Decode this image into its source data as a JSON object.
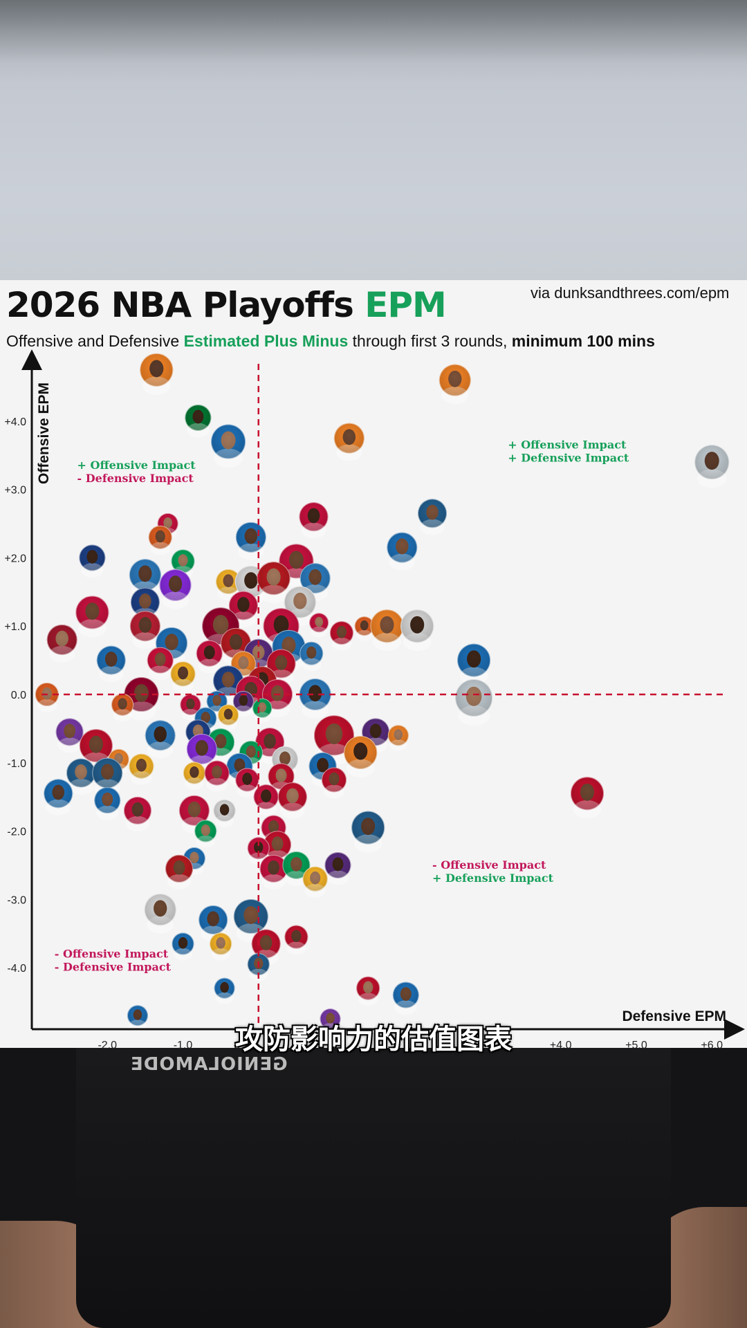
{
  "chart_data": {
    "type": "scatter",
    "title_main": "2026 NBA Playoffs",
    "title_accent": "EPM",
    "subtitle_parts": [
      {
        "text": "Offensive and Defensive ",
        "style": "normal"
      },
      {
        "text": "Estimated Plus Minus",
        "style": "accent"
      },
      {
        "text": " through first 3 rounds, ",
        "style": "normal"
      },
      {
        "text": "minimum 100 mins",
        "style": "strong"
      }
    ],
    "source": "via dunksandthrees.com/epm",
    "xlabel": "Defensive EPM",
    "ylabel": "Offensive EPM",
    "xlim": [
      -3.0,
      6.3
    ],
    "ylim": [
      -4.9,
      4.9
    ],
    "x_ticks": [
      "-2.0",
      "-1.0",
      "",
      "",
      "",
      "",
      "+4.0",
      "+5.0",
      "+6.0"
    ],
    "x_tick_values": [
      -2,
      -1,
      0,
      1,
      2,
      3,
      4,
      5,
      6
    ],
    "y_ticks": [
      "+4.0",
      "+3.0",
      "+2.0",
      "+1.0",
      "0.0",
      "-1.0",
      "-2.0",
      "-3.0",
      "-4.0"
    ],
    "y_tick_values": [
      4,
      3,
      2,
      1,
      0,
      -1,
      -2,
      -3,
      -4
    ],
    "reference_lines": {
      "x": 0,
      "y": 0,
      "color": "#c8102e",
      "style": "dashed"
    },
    "quadrant_labels": [
      {
        "lines": [
          {
            "text": "+ Offensive Impact",
            "sign": "plus"
          },
          {
            "text": "- Defensive Impact",
            "sign": "minus"
          }
        ],
        "x": -2.4,
        "y": 3.3
      },
      {
        "lines": [
          {
            "text": "+ Offensive Impact",
            "sign": "plus"
          },
          {
            "text": "+ Defensive Impact",
            "sign": "plus"
          }
        ],
        "x": 3.3,
        "y": 3.6
      },
      {
        "lines": [
          {
            "text": "- Offensive Impact",
            "sign": "minus"
          },
          {
            "text": "+ Defensive Impact",
            "sign": "plus"
          }
        ],
        "x": 2.3,
        "y": -2.55
      },
      {
        "lines": [
          {
            "text": "- Offensive Impact",
            "sign": "minus"
          },
          {
            "text": "- Defensive Impact",
            "sign": "minus"
          }
        ],
        "x": -2.7,
        "y": -3.85
      }
    ],
    "points": [
      {
        "x": -1.35,
        "y": 4.75,
        "color": "#f58426",
        "r": 24
      },
      {
        "x": 2.6,
        "y": 4.6,
        "color": "#f58426",
        "r": 23
      },
      {
        "x": -0.8,
        "y": 4.05,
        "color": "#007a33",
        "r": 19
      },
      {
        "x": -0.4,
        "y": 3.7,
        "color": "#1d72bb",
        "r": 25
      },
      {
        "x": 1.2,
        "y": 3.75,
        "color": "#f58426",
        "r": 22
      },
      {
        "x": 6.0,
        "y": 3.4,
        "color": "#c4ced4",
        "r": 25
      },
      {
        "x": 2.3,
        "y": 2.65,
        "color": "#236192",
        "r": 21
      },
      {
        "x": 0.73,
        "y": 2.6,
        "color": "#ce1141",
        "r": 21
      },
      {
        "x": -1.2,
        "y": 2.5,
        "color": "#ce1141",
        "r": 15
      },
      {
        "x": -1.3,
        "y": 2.3,
        "color": "#e56020",
        "r": 17
      },
      {
        "x": -0.1,
        "y": 2.3,
        "color": "#1d72bb",
        "r": 22
      },
      {
        "x": 1.9,
        "y": 2.15,
        "color": "#1d72bb",
        "r": 22
      },
      {
        "x": -2.2,
        "y": 2.0,
        "color": "#1d428a",
        "r": 19
      },
      {
        "x": -1.0,
        "y": 1.95,
        "color": "#00a65a",
        "r": 17
      },
      {
        "x": 0.5,
        "y": 1.95,
        "color": "#ce1141",
        "r": 25
      },
      {
        "x": -1.5,
        "y": 1.75,
        "color": "#2c7dc1",
        "r": 23
      },
      {
        "x": -0.4,
        "y": 1.65,
        "color": "#fdb927",
        "r": 18
      },
      {
        "x": -0.1,
        "y": 1.65,
        "color": "#e0e0e0",
        "r": 23
      },
      {
        "x": 0.2,
        "y": 1.7,
        "color": "#bd1b21",
        "r": 24
      },
      {
        "x": 0.75,
        "y": 1.7,
        "color": "#2c7dc1",
        "r": 22
      },
      {
        "x": -1.1,
        "y": 1.6,
        "color": "#8a2be2",
        "r": 23
      },
      {
        "x": -1.5,
        "y": 1.35,
        "color": "#1d428a",
        "r": 21
      },
      {
        "x": -0.2,
        "y": 1.3,
        "color": "#ce1141",
        "r": 21
      },
      {
        "x": 0.55,
        "y": 1.35,
        "color": "#dadada",
        "r": 23
      },
      {
        "x": -2.2,
        "y": 1.2,
        "color": "#ce1141",
        "r": 24
      },
      {
        "x": -1.5,
        "y": 1.0,
        "color": "#bf2035",
        "r": 22
      },
      {
        "x": -0.5,
        "y": 1.0,
        "color": "#98002e",
        "r": 27
      },
      {
        "x": 0.3,
        "y": 1.0,
        "color": "#ce1141",
        "r": 26
      },
      {
        "x": 0.8,
        "y": 1.05,
        "color": "#ce1141",
        "r": 14
      },
      {
        "x": 1.1,
        "y": 0.9,
        "color": "#c8102e",
        "r": 17
      },
      {
        "x": 1.4,
        "y": 1.0,
        "color": "#e56020",
        "r": 14
      },
      {
        "x": 1.7,
        "y": 1.0,
        "color": "#f58426",
        "r": 24
      },
      {
        "x": 2.1,
        "y": 1.0,
        "color": "#dadada",
        "r": 24
      },
      {
        "x": -2.6,
        "y": 0.8,
        "color": "#a6192e",
        "r": 22
      },
      {
        "x": -1.15,
        "y": 0.75,
        "color": "#1d72bb",
        "r": 23
      },
      {
        "x": -0.3,
        "y": 0.75,
        "color": "#bd1b21",
        "r": 22
      },
      {
        "x": 0.4,
        "y": 0.7,
        "color": "#1d72bb",
        "r": 24
      },
      {
        "x": -0.65,
        "y": 0.6,
        "color": "#ce1141",
        "r": 19
      },
      {
        "x": 0.0,
        "y": 0.6,
        "color": "#5a2d81",
        "r": 21
      },
      {
        "x": 0.7,
        "y": 0.6,
        "color": "#2c7dc1",
        "r": 17
      },
      {
        "x": -1.95,
        "y": 0.5,
        "color": "#1d72bb",
        "r": 21
      },
      {
        "x": -1.3,
        "y": 0.5,
        "color": "#d1103c",
        "r": 19
      },
      {
        "x": 2.85,
        "y": 0.5,
        "color": "#1d72bb",
        "r": 24
      },
      {
        "x": -0.2,
        "y": 0.45,
        "color": "#f58426",
        "r": 18
      },
      {
        "x": 0.3,
        "y": 0.45,
        "color": "#c8102e",
        "r": 21
      },
      {
        "x": -1.0,
        "y": 0.3,
        "color": "#fdb927",
        "r": 18
      },
      {
        "x": -0.4,
        "y": 0.2,
        "color": "#1d428a",
        "r": 22
      },
      {
        "x": 0.05,
        "y": 0.2,
        "color": "#bd1b21",
        "r": 21
      },
      {
        "x": -2.8,
        "y": 0.0,
        "color": "#e56020",
        "r": 17
      },
      {
        "x": -1.55,
        "y": 0.0,
        "color": "#98002e",
        "r": 25
      },
      {
        "x": -0.1,
        "y": 0.05,
        "color": "#ce1141",
        "r": 22
      },
      {
        "x": 0.25,
        "y": 0.0,
        "color": "#ce1141",
        "r": 22
      },
      {
        "x": 0.75,
        "y": 0.0,
        "color": "#2c7dc1",
        "r": 23
      },
      {
        "x": 2.85,
        "y": -0.05,
        "color": "#c4ced4",
        "r": 27
      },
      {
        "x": -1.8,
        "y": -0.15,
        "color": "#e56020",
        "r": 16
      },
      {
        "x": -0.9,
        "y": -0.15,
        "color": "#ce1141",
        "r": 15
      },
      {
        "x": -0.55,
        "y": -0.1,
        "color": "#1d72bb",
        "r": 15
      },
      {
        "x": -0.2,
        "y": -0.1,
        "color": "#5a2d81",
        "r": 15
      },
      {
        "x": 0.05,
        "y": -0.2,
        "color": "#00a65a",
        "r": 14
      },
      {
        "x": -0.7,
        "y": -0.35,
        "color": "#1d72bb",
        "r": 16
      },
      {
        "x": -0.4,
        "y": -0.3,
        "color": "#fdb927",
        "r": 15
      },
      {
        "x": -2.5,
        "y": -0.55,
        "color": "#7a3aab",
        "r": 20
      },
      {
        "x": -1.3,
        "y": -0.6,
        "color": "#2c7dc1",
        "r": 22
      },
      {
        "x": -0.8,
        "y": -0.55,
        "color": "#1d428a",
        "r": 18
      },
      {
        "x": -0.5,
        "y": -0.7,
        "color": "#00a65a",
        "r": 20
      },
      {
        "x": 0.15,
        "y": -0.7,
        "color": "#ce1141",
        "r": 21
      },
      {
        "x": 1.0,
        "y": -0.6,
        "color": "#c8102e",
        "r": 29
      },
      {
        "x": 1.55,
        "y": -0.55,
        "color": "#5a2d81",
        "r": 20
      },
      {
        "x": 1.85,
        "y": -0.6,
        "color": "#f58426",
        "r": 15
      },
      {
        "x": -2.15,
        "y": -0.75,
        "color": "#c8102e",
        "r": 24
      },
      {
        "x": -0.75,
        "y": -0.8,
        "color": "#8a2be2",
        "r": 22
      },
      {
        "x": -0.1,
        "y": -0.85,
        "color": "#00a65a",
        "r": 17
      },
      {
        "x": 1.35,
        "y": -0.85,
        "color": "#f58426",
        "r": 24
      },
      {
        "x": -1.85,
        "y": -0.95,
        "color": "#f58426",
        "r": 15
      },
      {
        "x": -1.55,
        "y": -1.05,
        "color": "#fdb927",
        "r": 18
      },
      {
        "x": -0.25,
        "y": -1.05,
        "color": "#1d72bb",
        "r": 19
      },
      {
        "x": 0.35,
        "y": -0.95,
        "color": "#dadada",
        "r": 19
      },
      {
        "x": 0.85,
        "y": -1.05,
        "color": "#1d72bb",
        "r": 20
      },
      {
        "x": -2.35,
        "y": -1.15,
        "color": "#236192",
        "r": 21
      },
      {
        "x": -2.0,
        "y": -1.15,
        "color": "#236192",
        "r": 22
      },
      {
        "x": -0.85,
        "y": -1.15,
        "color": "#fdb927",
        "r": 16
      },
      {
        "x": -0.55,
        "y": -1.15,
        "color": "#ce1141",
        "r": 18
      },
      {
        "x": -0.15,
        "y": -1.25,
        "color": "#ce1141",
        "r": 17
      },
      {
        "x": 0.3,
        "y": -1.2,
        "color": "#c8102e",
        "r": 19
      },
      {
        "x": 1.0,
        "y": -1.25,
        "color": "#c8102e",
        "r": 18
      },
      {
        "x": -2.65,
        "y": -1.45,
        "color": "#1d72bb",
        "r": 21
      },
      {
        "x": -2.0,
        "y": -1.55,
        "color": "#1d72bb",
        "r": 19
      },
      {
        "x": 0.1,
        "y": -1.5,
        "color": "#ce1141",
        "r": 18
      },
      {
        "x": 0.45,
        "y": -1.5,
        "color": "#c8102e",
        "r": 21
      },
      {
        "x": 4.35,
        "y": -1.45,
        "color": "#c8102e",
        "r": 24
      },
      {
        "x": -1.6,
        "y": -1.7,
        "color": "#ce1141",
        "r": 20
      },
      {
        "x": -0.85,
        "y": -1.7,
        "color": "#ce1141",
        "r": 22
      },
      {
        "x": -0.45,
        "y": -1.7,
        "color": "#dadada",
        "r": 16
      },
      {
        "x": -0.7,
        "y": -2.0,
        "color": "#00a65a",
        "r": 16
      },
      {
        "x": 0.2,
        "y": -1.95,
        "color": "#ce1141",
        "r": 18
      },
      {
        "x": 1.45,
        "y": -1.95,
        "color": "#236192",
        "r": 24
      },
      {
        "x": 0.25,
        "y": -2.2,
        "color": "#c8102e",
        "r": 20
      },
      {
        "x": 0.0,
        "y": -2.25,
        "color": "#ce1141",
        "r": 16
      },
      {
        "x": -0.85,
        "y": -2.4,
        "color": "#1d72bb",
        "r": 16
      },
      {
        "x": -1.05,
        "y": -2.55,
        "color": "#bd1b21",
        "r": 20
      },
      {
        "x": 0.2,
        "y": -2.55,
        "color": "#ce1141",
        "r": 20
      },
      {
        "x": 0.5,
        "y": -2.5,
        "color": "#00a65a",
        "r": 20
      },
      {
        "x": 1.05,
        "y": -2.5,
        "color": "#5a2d81",
        "r": 19
      },
      {
        "x": 0.75,
        "y": -2.7,
        "color": "#fdb927",
        "r": 18
      },
      {
        "x": -1.3,
        "y": -3.15,
        "color": "#dadada",
        "r": 23
      },
      {
        "x": -0.6,
        "y": -3.3,
        "color": "#1d72bb",
        "r": 21
      },
      {
        "x": -0.1,
        "y": -3.25,
        "color": "#236192",
        "r": 25
      },
      {
        "x": -1.0,
        "y": -3.65,
        "color": "#1d72bb",
        "r": 16
      },
      {
        "x": -0.5,
        "y": -3.65,
        "color": "#fdb927",
        "r": 16
      },
      {
        "x": 0.1,
        "y": -3.65,
        "color": "#c8102e",
        "r": 21
      },
      {
        "x": 0.5,
        "y": -3.55,
        "color": "#c8102e",
        "r": 17
      },
      {
        "x": 0.0,
        "y": -3.95,
        "color": "#236192",
        "r": 16
      },
      {
        "x": -0.45,
        "y": -4.3,
        "color": "#1d72bb",
        "r": 15
      },
      {
        "x": 1.45,
        "y": -4.3,
        "color": "#c8102e",
        "r": 17
      },
      {
        "x": 1.95,
        "y": -4.4,
        "color": "#1d72bb",
        "r": 19
      },
      {
        "x": -1.6,
        "y": -4.7,
        "color": "#1d72bb",
        "r": 15
      },
      {
        "x": 0.95,
        "y": -4.75,
        "color": "#7a3aab",
        "r": 15
      }
    ]
  },
  "shirt_print": "GENIOLAMODE",
  "caption": "攻防影响力的估值图表"
}
